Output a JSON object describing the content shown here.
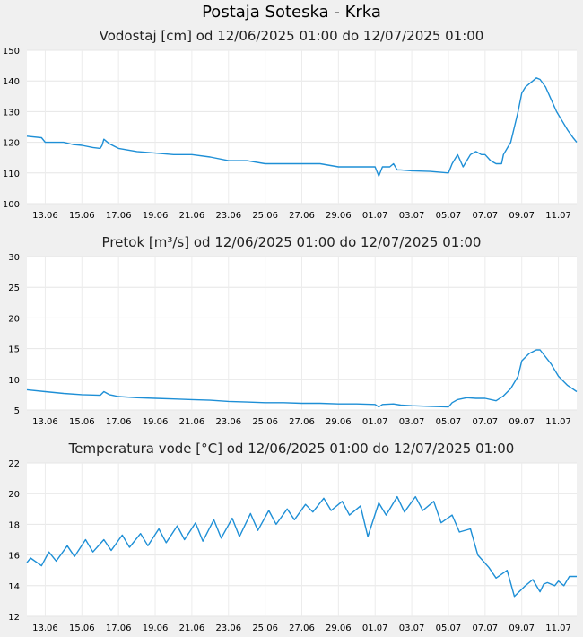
{
  "page_title": "Postaja Soteska - Krka",
  "chart_data": [
    {
      "type": "line",
      "title": "Vodostaj [cm] od 12/06/2025 01:00 do 12/07/2025 01:00",
      "ylim": [
        100,
        150
      ],
      "yticks": [
        100,
        110,
        120,
        130,
        140,
        150
      ],
      "xlim": [
        0,
        30
      ],
      "x_tick_positions": [
        1.0,
        3.0,
        5.0,
        7.0,
        9.0,
        11.0,
        13.0,
        15.0,
        17.0,
        19.0,
        21.0,
        23.0,
        25.0,
        27.0,
        29.0
      ],
      "x_tick_labels": [
        "13.06",
        "15.06",
        "17.06",
        "19.06",
        "21.06",
        "23.06",
        "25.06",
        "27.06",
        "29.06",
        "01.07",
        "03.07",
        "05.07",
        "07.07",
        "09.07",
        "11.07"
      ],
      "color": "#1e8fd6",
      "series": [
        {
          "name": "Vodostaj",
          "x": [
            0,
            0.8,
            1.0,
            2.0,
            2.5,
            3.0,
            3.6,
            4.0,
            4.1,
            4.2,
            4.5,
            5.0,
            5.5,
            6.0,
            7.0,
            8.0,
            9.0,
            10.0,
            11.0,
            12.0,
            13.0,
            14.0,
            15.0,
            16.0,
            17.0,
            18.0,
            19.0,
            19.2,
            19.4,
            19.8,
            20.0,
            20.2,
            20.4,
            21.0,
            22.0,
            23.0,
            23.2,
            23.5,
            23.8,
            24.0,
            24.2,
            24.5,
            24.8,
            25.0,
            25.3,
            25.6,
            25.9,
            26.0,
            26.2,
            26.4,
            26.6,
            26.8,
            27.0,
            27.2,
            27.4,
            27.6,
            27.8,
            28.0,
            28.3,
            28.6,
            28.9,
            29.2,
            29.5,
            29.8,
            30.0
          ],
          "y": [
            122,
            121.5,
            120,
            120,
            119.3,
            119,
            118.3,
            118,
            119,
            121,
            119.5,
            118,
            117.5,
            117,
            116.5,
            116,
            116,
            115.2,
            114,
            114,
            113,
            113,
            113,
            113,
            112,
            112,
            112,
            109,
            112,
            112,
            113,
            111,
            111,
            110.7,
            110.5,
            110,
            113,
            116,
            112,
            114,
            116,
            117,
            116,
            116,
            114,
            113,
            113,
            116,
            118,
            120,
            125,
            130,
            136,
            138,
            139,
            140,
            141,
            140.5,
            138,
            134,
            130,
            127,
            124,
            121.5,
            120
          ]
        }
      ]
    },
    {
      "type": "line",
      "title": "Pretok [m³/s] od 12/06/2025 01:00 do 12/07/2025 01:00",
      "ylim": [
        5,
        30
      ],
      "yticks": [
        5,
        10,
        15,
        20,
        25,
        30
      ],
      "xlim": [
        0,
        30
      ],
      "x_tick_positions": [
        1.0,
        3.0,
        5.0,
        7.0,
        9.0,
        11.0,
        13.0,
        15.0,
        17.0,
        19.0,
        21.0,
        23.0,
        25.0,
        27.0,
        29.0
      ],
      "x_tick_labels": [
        "13.06",
        "15.06",
        "17.06",
        "19.06",
        "21.06",
        "23.06",
        "25.06",
        "27.06",
        "29.06",
        "01.07",
        "03.07",
        "05.07",
        "07.07",
        "09.07",
        "11.07"
      ],
      "color": "#1e8fd6",
      "series": [
        {
          "name": "Pretok",
          "x": [
            0,
            1.0,
            2.0,
            3.0,
            4.0,
            4.2,
            4.5,
            5.0,
            6.0,
            7.0,
            8.0,
            9.0,
            10.0,
            11.0,
            12.0,
            13.0,
            14.0,
            15.0,
            16.0,
            17.0,
            18.0,
            19.0,
            19.2,
            19.4,
            20.0,
            20.4,
            21.0,
            22.0,
            23.0,
            23.2,
            23.5,
            24.0,
            24.5,
            25.0,
            25.6,
            26.0,
            26.4,
            26.8,
            27.0,
            27.4,
            27.8,
            28.0,
            28.6,
            29.0,
            29.5,
            30.0
          ],
          "y": [
            8.3,
            8.0,
            7.7,
            7.5,
            7.4,
            8.0,
            7.5,
            7.2,
            7.0,
            6.9,
            6.8,
            6.7,
            6.6,
            6.4,
            6.3,
            6.2,
            6.2,
            6.1,
            6.1,
            6.0,
            6.0,
            5.9,
            5.5,
            5.9,
            6.0,
            5.8,
            5.7,
            5.6,
            5.5,
            6.2,
            6.7,
            7.0,
            6.9,
            6.9,
            6.5,
            7.3,
            8.5,
            10.5,
            13.0,
            14.2,
            14.8,
            14.8,
            12.5,
            10.5,
            9.0,
            8.0
          ]
        }
      ]
    },
    {
      "type": "line",
      "title": "Temperatura vode [°C] od 12/06/2025 01:00 do 12/07/2025 01:00",
      "ylim": [
        12,
        22
      ],
      "yticks": [
        12,
        14,
        16,
        18,
        20,
        22
      ],
      "xlim": [
        0,
        30
      ],
      "x_tick_positions": [
        1.0,
        3.0,
        5.0,
        7.0,
        9.0,
        11.0,
        13.0,
        15.0,
        17.0,
        19.0,
        21.0,
        23.0,
        25.0,
        27.0,
        29.0
      ],
      "x_tick_labels": [
        "13.06",
        "15.06",
        "17.06",
        "19.06",
        "21.06",
        "23.06",
        "25.06",
        "27.06",
        "29.06",
        "01.07",
        "03.07",
        "05.07",
        "07.07",
        "09.07",
        "11.07"
      ],
      "color": "#1e8fd6",
      "series": [
        {
          "name": "Temperatura vode",
          "x": [
            0,
            0.2,
            0.8,
            1.2,
            1.6,
            2.2,
            2.6,
            3.2,
            3.6,
            4.2,
            4.6,
            5.2,
            5.6,
            6.2,
            6.6,
            7.2,
            7.6,
            8.2,
            8.6,
            9.2,
            9.6,
            10.2,
            10.6,
            11.2,
            11.6,
            12.2,
            12.6,
            13.2,
            13.6,
            14.2,
            14.6,
            15.2,
            15.6,
            16.2,
            16.6,
            17.2,
            17.6,
            18.2,
            18.6,
            19.2,
            19.6,
            20.2,
            20.6,
            21.2,
            21.6,
            22.2,
            22.6,
            23.2,
            23.6,
            24.2,
            24.6,
            25.2,
            25.6,
            26.2,
            26.6,
            27.2,
            27.6,
            28.0,
            28.2,
            28.4,
            28.8,
            29.0,
            29.3,
            29.6,
            30.0
          ],
          "y": [
            15.5,
            15.8,
            15.3,
            16.2,
            15.6,
            16.6,
            15.9,
            17.0,
            16.2,
            17.0,
            16.3,
            17.3,
            16.5,
            17.4,
            16.6,
            17.7,
            16.8,
            17.9,
            17.0,
            18.1,
            16.9,
            18.3,
            17.1,
            18.4,
            17.2,
            18.7,
            17.6,
            18.9,
            18.0,
            19.0,
            18.3,
            19.3,
            18.8,
            19.7,
            18.9,
            19.5,
            18.6,
            19.2,
            17.2,
            19.4,
            18.6,
            19.8,
            18.8,
            19.8,
            18.9,
            19.5,
            18.1,
            18.6,
            17.5,
            17.7,
            16.0,
            15.2,
            14.5,
            15.0,
            13.3,
            14.0,
            14.4,
            13.6,
            14.1,
            14.2,
            14.0,
            14.3,
            14.0,
            14.6,
            14.6
          ]
        }
      ]
    }
  ]
}
